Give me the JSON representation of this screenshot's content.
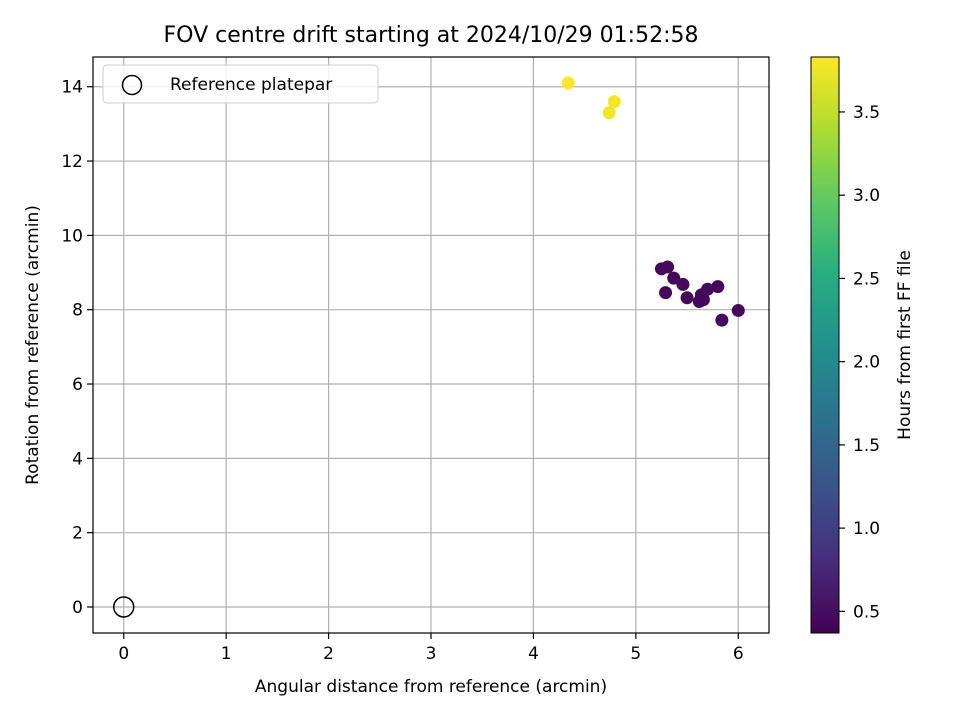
{
  "chart_data": {
    "type": "scatter",
    "title": "FOV centre drift starting at 2024/10/29 01:52:58",
    "xlabel": "Angular distance from reference (arcmin)",
    "ylabel": "Rotation from reference (arcmin)",
    "xlim": [
      -0.3,
      6.3
    ],
    "ylim": [
      -0.7,
      14.8
    ],
    "xticks": [
      0,
      1,
      2,
      3,
      4,
      5,
      6
    ],
    "yticks": [
      0,
      2,
      4,
      6,
      8,
      10,
      12,
      14
    ],
    "grid": true,
    "legend": {
      "position": "top-left",
      "entries": [
        "Reference platepar"
      ]
    },
    "reference_point": {
      "x": 0,
      "y": 0,
      "label": "Reference platepar"
    },
    "colorbar": {
      "label": "Hours from first FF file",
      "colormap": "viridis",
      "range": [
        0.37,
        3.83
      ],
      "ticks": [
        0.5,
        1.0,
        1.5,
        2.0,
        2.5,
        3.0,
        3.5
      ]
    },
    "series": [
      {
        "points": [
          {
            "x": 4.34,
            "y": 14.1,
            "hours": 3.83
          },
          {
            "x": 4.79,
            "y": 13.6,
            "hours": 3.8
          },
          {
            "x": 4.74,
            "y": 13.3,
            "hours": 3.78
          },
          {
            "x": 5.25,
            "y": 9.1,
            "hours": 0.45
          },
          {
            "x": 5.31,
            "y": 9.15,
            "hours": 0.47
          },
          {
            "x": 5.37,
            "y": 8.85,
            "hours": 0.44
          },
          {
            "x": 5.46,
            "y": 8.68,
            "hours": 0.46
          },
          {
            "x": 5.29,
            "y": 8.46,
            "hours": 0.43
          },
          {
            "x": 5.5,
            "y": 8.32,
            "hours": 0.45
          },
          {
            "x": 5.62,
            "y": 8.22,
            "hours": 0.44
          },
          {
            "x": 5.66,
            "y": 8.27,
            "hours": 0.46
          },
          {
            "x": 5.64,
            "y": 8.4,
            "hours": 0.45
          },
          {
            "x": 5.7,
            "y": 8.55,
            "hours": 0.47
          },
          {
            "x": 5.8,
            "y": 8.62,
            "hours": 0.44
          },
          {
            "x": 5.84,
            "y": 7.72,
            "hours": 0.43
          },
          {
            "x": 6.0,
            "y": 7.98,
            "hours": 0.45
          }
        ]
      }
    ]
  }
}
